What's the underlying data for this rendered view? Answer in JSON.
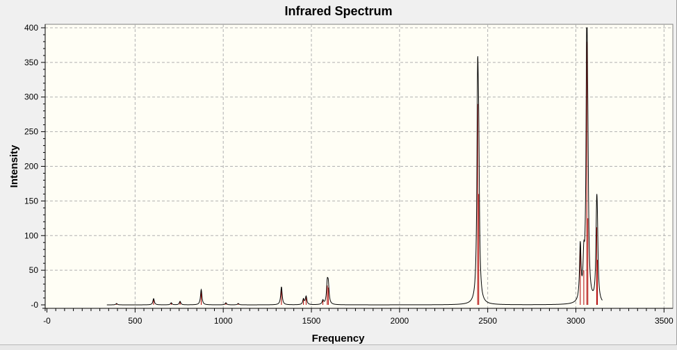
{
  "window": {
    "title": "Infrared Spectrum"
  },
  "colors": {
    "plot_bg": "#fffef5",
    "page_bg": "#f0f0f0",
    "grid": "#b0b0b0",
    "spectrum": "#000000",
    "sticks": "#b00000"
  },
  "chart_data": {
    "type": "line",
    "title": "Infrared Spectrum",
    "xlabel": "Frequency",
    "ylabel": "Intensity",
    "xlim": [
      -10,
      3550
    ],
    "ylim": [
      -5,
      405
    ],
    "x_ticks": [
      0,
      500,
      1000,
      1500,
      2000,
      2500,
      3000,
      3500
    ],
    "x_tick_labels": [
      "-0",
      "500",
      "1000",
      "1500",
      "2000",
      "2500",
      "3000",
      "3500"
    ],
    "y_ticks": [
      0,
      50,
      100,
      150,
      200,
      250,
      300,
      350,
      400
    ],
    "y_tick_labels": [
      "-0",
      "50",
      "100",
      "150",
      "200",
      "250",
      "300",
      "350",
      "400"
    ],
    "grid": true,
    "spectrum_range": [
      340,
      3150
    ],
    "peak_width": 5,
    "series": [
      {
        "kind": "sticks",
        "x": [
          395,
          605,
          705,
          755,
          875,
          1015,
          1085,
          1330,
          1455,
          1470,
          1565,
          1590,
          1596,
          2443,
          2449,
          3025,
          3045,
          3062,
          3068,
          3118,
          3122
        ],
        "y": [
          2,
          9,
          3,
          5,
          22,
          3,
          2,
          26,
          8,
          12,
          6,
          28,
          25,
          290,
          160,
          80,
          50,
          380,
          125,
          112,
          65
        ]
      }
    ]
  }
}
